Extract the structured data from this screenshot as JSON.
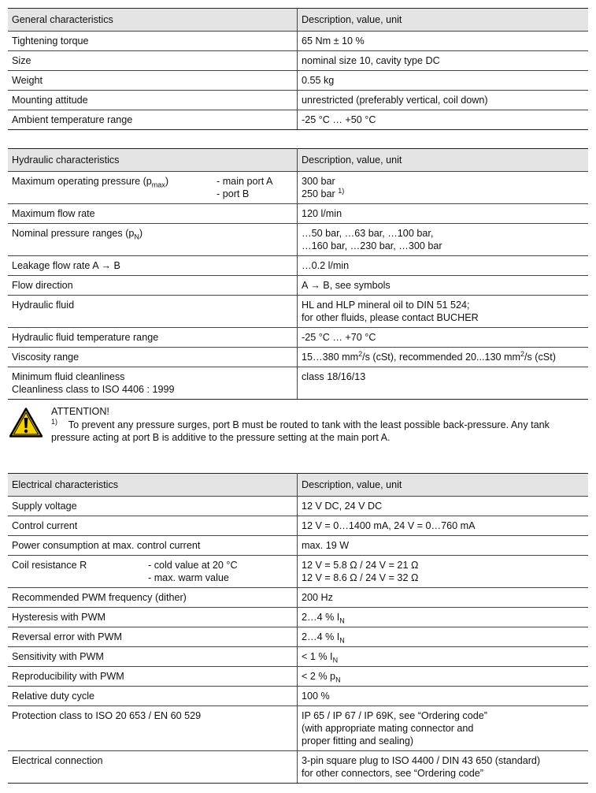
{
  "tables": [
    {
      "header": [
        "General characteristics",
        "Description, value, unit"
      ],
      "rows": [
        {
          "label": [
            [
              "Tightening torque"
            ]
          ],
          "value": [
            [
              "65 Nm  ± 10 %"
            ]
          ]
        },
        {
          "label": [
            [
              "Size"
            ]
          ],
          "value": [
            [
              "nominal size 10, cavity type DC"
            ]
          ]
        },
        {
          "label": [
            [
              "Weight"
            ]
          ],
          "value": [
            [
              "0.55 kg"
            ]
          ]
        },
        {
          "label": [
            [
              "Mounting attitude"
            ]
          ],
          "value": [
            [
              "unrestricted (preferably vertical, coil down)"
            ]
          ]
        },
        {
          "label": [
            [
              "Ambient temperature range"
            ]
          ],
          "value": [
            [
              "-25 °C … +50 °C"
            ]
          ]
        }
      ]
    },
    {
      "header": [
        "Hydraulic characteristics",
        "Description, value, unit"
      ],
      "rows": [
        {
          "label": [
            [
              "Maximum operating pressure (p",
              {
                "sub": "max"
              },
              ")"
            ]
          ],
          "sublabel": [
            [
              "- main port A"
            ],
            [
              "- port B"
            ]
          ],
          "value": [
            [
              "300 bar"
            ],
            [
              "250 bar ",
              {
                "sup": "1)"
              }
            ]
          ]
        },
        {
          "label": [
            [
              "Maximum flow rate"
            ]
          ],
          "value": [
            [
              "120 l/min"
            ]
          ]
        },
        {
          "label": [
            [
              "Nominal pressure ranges (p",
              {
                "sub": "N"
              },
              ")"
            ]
          ],
          "value": [
            [
              "…50 bar, …63 bar, …100 bar,"
            ],
            [
              "…160 bar, …230 bar, …300 bar"
            ]
          ]
        },
        {
          "label": [
            [
              "Leakage flow rate A → B"
            ]
          ],
          "value": [
            [
              "…0.2 l/min"
            ]
          ]
        },
        {
          "label": [
            [
              "Flow direction"
            ]
          ],
          "value": [
            [
              "A → B,  see symbols"
            ]
          ]
        },
        {
          "label": [
            [
              "Hydraulic fluid"
            ]
          ],
          "value": [
            [
              "HL and HLP mineral oil to DIN 51 524;"
            ],
            [
              "for other fluids, please contact BUCHER"
            ]
          ]
        },
        {
          "label": [
            [
              "Hydraulic fluid temperature range"
            ]
          ],
          "value": [
            [
              "-25 °C … +70 °C"
            ]
          ]
        },
        {
          "label": [
            [
              "Viscosity range"
            ]
          ],
          "value": [
            [
              "15…380 mm",
              {
                "sup": "2"
              },
              "/s (cSt), recommended 20...130 mm",
              {
                "sup": "2"
              },
              "/s (cSt)"
            ]
          ]
        },
        {
          "label": [
            [
              "Minimum fluid cleanliness"
            ],
            [
              "Cleanliness class to ISO 4406 : 1999"
            ]
          ],
          "value": [
            [
              "class 18/16/13"
            ]
          ]
        }
      ]
    },
    {
      "header": [
        "Electrical characteristics",
        "Description, value, unit"
      ],
      "rows": [
        {
          "label": [
            [
              "Supply voltage"
            ]
          ],
          "value": [
            [
              "12 V DC, 24 V DC"
            ]
          ]
        },
        {
          "label": [
            [
              "Control current"
            ]
          ],
          "value": [
            [
              "12 V = 0…1400 mA, 24 V = 0…760 mA"
            ]
          ]
        },
        {
          "label": [
            [
              "Power consumption at max. control current"
            ]
          ],
          "value": [
            [
              "max. 19 W"
            ]
          ]
        },
        {
          "label": [
            [
              "Coil resistance R"
            ]
          ],
          "sublabel": [
            [
              "- cold value at 20 °C"
            ],
            [
              "- max. warm value"
            ]
          ],
          "value": [
            [
              "12 V = 5.8 Ω   /   24 V = 21 Ω"
            ],
            [
              "12 V = 8.6 Ω   /   24 V = 32 Ω"
            ]
          ]
        },
        {
          "label": [
            [
              "Recommended PWM frequency (dither)"
            ]
          ],
          "value": [
            [
              "200 Hz"
            ]
          ]
        },
        {
          "label": [
            [
              "Hysteresis with PWM"
            ]
          ],
          "value": [
            [
              "2…4 % I",
              {
                "sub": "N"
              }
            ]
          ]
        },
        {
          "label": [
            [
              "Reversal error with PWM"
            ]
          ],
          "value": [
            [
              "2…4 % I",
              {
                "sub": "N"
              }
            ]
          ]
        },
        {
          "label": [
            [
              "Sensitivity with PWM"
            ]
          ],
          "value": [
            [
              "< 1 % I",
              {
                "sub": "N"
              }
            ]
          ]
        },
        {
          "label": [
            [
              "Reproducibility with PWM"
            ]
          ],
          "value": [
            [
              "< 2 % p",
              {
                "sub": "N"
              }
            ]
          ]
        },
        {
          "label": [
            [
              "Relative duty cycle"
            ]
          ],
          "value": [
            [
              "100 %"
            ]
          ]
        },
        {
          "label": [
            [
              "Protection class to ISO 20 653 / EN 60 529"
            ]
          ],
          "value": [
            [
              "IP 65 / IP 67 / IP 69K, see “Ordering code”"
            ],
            [
              "(with appropriate mating connector and"
            ],
            [
              "proper fitting and sealing)"
            ]
          ]
        },
        {
          "label": [
            [
              "Electrical connection"
            ]
          ],
          "value": [
            [
              "3-pin square plug to ISO 4400 / DIN 43 650 (standard)"
            ],
            [
              "for other connectors, see “Ordering code”"
            ]
          ]
        }
      ]
    }
  ],
  "attention": {
    "icon": "warning-triangle-icon",
    "title": "ATTENTION!",
    "footnote_mark": "1)",
    "text": "To prevent any pressure surges, port B must be routed to tank with the least possible back-pressure. Any tank pressure acting at port B is additive to the pressure setting at the main port A.",
    "icon_color": "#f5d000"
  },
  "colors": {
    "header_bg": "#e4e4e4",
    "rule": "#222222"
  }
}
